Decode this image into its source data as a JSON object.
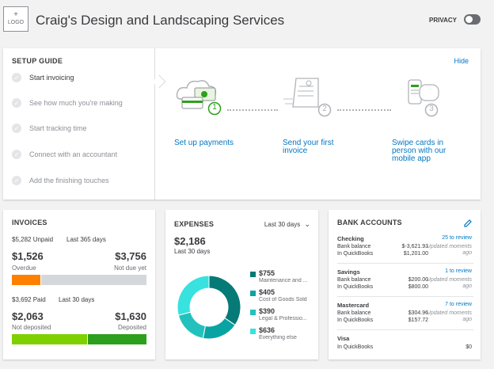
{
  "header": {
    "logo_plus": "+",
    "logo_text": "LOGO",
    "company": "Craig's Design and Landscaping Services",
    "privacy_label": "PRIVACY"
  },
  "setup": {
    "title": "SETUP GUIDE",
    "hide": "Hide",
    "steps": [
      {
        "label": "Start invoicing"
      },
      {
        "label": "See how much you're making"
      },
      {
        "label": "Start tracking time"
      },
      {
        "label": "Connect with an accountant"
      },
      {
        "label": "Add the finishing touches"
      }
    ],
    "actions": [
      {
        "num": "1",
        "label": "Set up payments"
      },
      {
        "num": "2",
        "label": "Send your first invoice"
      },
      {
        "num": "3",
        "label": "Swipe cards in person with our mobile app"
      }
    ]
  },
  "invoices": {
    "title": "INVOICES",
    "unpaid": "$5,282 Unpaid",
    "unpaid_range": "Last 365 days",
    "overdue_amt": "$1,526",
    "overdue_lbl": "Overdue",
    "notdue_amt": "$3,756",
    "notdue_lbl": "Not due yet",
    "paid": "$3,692 Paid",
    "paid_range": "Last 30 days",
    "notdep_amt": "$2,063",
    "notdep_lbl": "Not deposited",
    "dep_amt": "$1,630",
    "dep_lbl": "Deposited",
    "unpaid_split": [
      1526,
      3756
    ],
    "paid_split": [
      2063,
      1630
    ],
    "colors": {
      "overdue": "#ff8000",
      "notdue": "#d4d7dc",
      "notdep": "#7fd000",
      "dep": "#2ca01c"
    }
  },
  "expenses": {
    "title": "EXPENSES",
    "range": "Last 30 days",
    "total": "$2,186",
    "total_range": "Last 30 days",
    "items": [
      {
        "amount": "$755",
        "label": "Maintenance and ...",
        "value": 755,
        "color": "#057a76"
      },
      {
        "amount": "$405",
        "label": "Cost of Goods Sold",
        "value": 405,
        "color": "#08a4a3"
      },
      {
        "amount": "$390",
        "label": "Legal & Professio...",
        "value": 390,
        "color": "#23c1bd"
      },
      {
        "amount": "$636",
        "label": "Everything else",
        "value": 636,
        "color": "#37e2df"
      }
    ]
  },
  "bank": {
    "title": "BANK ACCOUNTS",
    "accounts": [
      {
        "name": "Checking",
        "review": "25 to review",
        "bank_lbl": "Bank balance",
        "bank_val": "$-3,621.93",
        "qb_lbl": "In QuickBooks",
        "qb_val": "$1,201.00",
        "updated": "Updated moments ago"
      },
      {
        "name": "Savings",
        "review": "1 to review",
        "bank_lbl": "Bank balance",
        "bank_val": "$200.00",
        "qb_lbl": "In QuickBooks",
        "qb_val": "$800.00",
        "updated": "Updated moments ago"
      },
      {
        "name": "Mastercard",
        "review": "7 to review",
        "bank_lbl": "Bank balance",
        "bank_val": "$304.96",
        "qb_lbl": "In QuickBooks",
        "qb_val": "$157.72",
        "updated": "Updated moments ago"
      },
      {
        "name": "Visa",
        "qb_lbl": "In QuickBooks",
        "qb_val": "$0"
      }
    ]
  }
}
